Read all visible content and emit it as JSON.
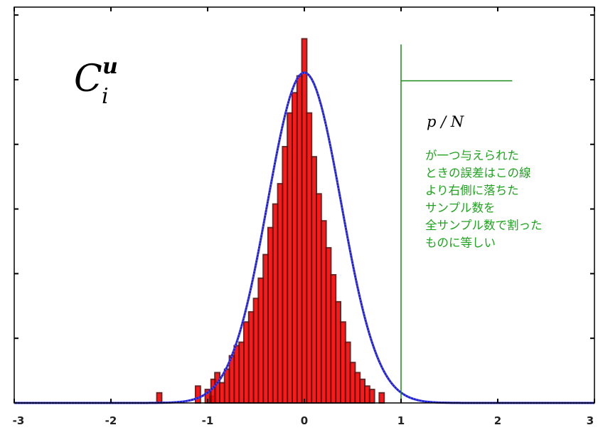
{
  "chart_data": {
    "type": "histogram",
    "title": "",
    "xlabel": "",
    "ylabel": "",
    "xlim": [
      -3,
      3
    ],
    "ylim": [
      0,
      1.1
    ],
    "grid": false,
    "x_tick_labels": [
      "-3",
      "-2",
      "-1",
      "0",
      "1",
      "2",
      "3"
    ],
    "y_tick_count": 6,
    "histogram": {
      "color": "#ff0000",
      "edge_color": "#5a1010",
      "bins": [
        {
          "x": -1.5,
          "v": 0.03
        },
        {
          "x": -1.1,
          "v": 0.05
        },
        {
          "x": -1.0,
          "v": 0.04
        },
        {
          "x": -0.95,
          "v": 0.02
        },
        {
          "x": -0.94,
          "v": 0.07
        },
        {
          "x": -0.9,
          "v": 0.09
        },
        {
          "x": -0.85,
          "v": 0.06
        },
        {
          "x": -0.8,
          "v": 0.1
        },
        {
          "x": -0.75,
          "v": 0.14
        },
        {
          "x": -0.7,
          "v": 0.17
        },
        {
          "x": -0.65,
          "v": 0.18
        },
        {
          "x": -0.6,
          "v": 0.24
        },
        {
          "x": -0.55,
          "v": 0.27
        },
        {
          "x": -0.5,
          "v": 0.31
        },
        {
          "x": -0.45,
          "v": 0.37
        },
        {
          "x": -0.4,
          "v": 0.44
        },
        {
          "x": -0.35,
          "v": 0.52
        },
        {
          "x": -0.3,
          "v": 0.59
        },
        {
          "x": -0.25,
          "v": 0.65
        },
        {
          "x": -0.2,
          "v": 0.76
        },
        {
          "x": -0.15,
          "v": 0.86
        },
        {
          "x": -0.1,
          "v": 0.92
        },
        {
          "x": -0.05,
          "v": 0.97
        },
        {
          "x": 0.0,
          "v": 1.08
        },
        {
          "x": 0.05,
          "v": 0.86
        },
        {
          "x": 0.1,
          "v": 0.73
        },
        {
          "x": 0.15,
          "v": 0.62
        },
        {
          "x": 0.2,
          "v": 0.54
        },
        {
          "x": 0.25,
          "v": 0.46
        },
        {
          "x": 0.3,
          "v": 0.38
        },
        {
          "x": 0.35,
          "v": 0.3
        },
        {
          "x": 0.4,
          "v": 0.24
        },
        {
          "x": 0.45,
          "v": 0.18
        },
        {
          "x": 0.5,
          "v": 0.12
        },
        {
          "x": 0.55,
          "v": 0.09
        },
        {
          "x": 0.6,
          "v": 0.07
        },
        {
          "x": 0.65,
          "v": 0.05
        },
        {
          "x": 0.7,
          "v": 0.04
        },
        {
          "x": 0.8,
          "v": 0.03
        }
      ]
    },
    "curve": {
      "type": "gaussian",
      "color": "#2222cc",
      "mean": 0.0,
      "sd": 0.38,
      "peak": 0.98
    },
    "threshold": {
      "x": 1.0,
      "color": "#1a8a1a",
      "top": 1.0,
      "arm_to_x": 2.15,
      "arm_y": 0.93
    },
    "annotations": {
      "symbol": {
        "base": "C",
        "superscript": "u",
        "subscript": "i"
      },
      "pn": "p / N",
      "note_lines": [
        "が一つ与えられた",
        "ときの誤差はこの線",
        "より右側に落ちた",
        "サンプル数を",
        "全サンプル数で割った",
        "ものに等しい"
      ],
      "note_color": "#1fa31f"
    }
  }
}
